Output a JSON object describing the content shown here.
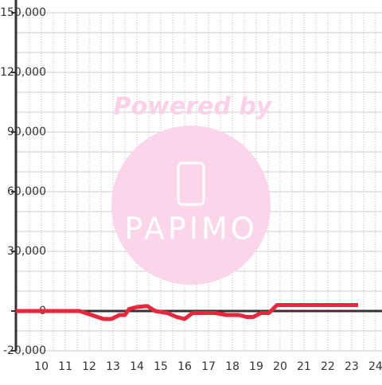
{
  "chart_data": {
    "type": "line",
    "watermark": {
      "line1": "Powered by",
      "line2": "PAPIMO"
    },
    "x": [
      8.93,
      11.6,
      12.1,
      12.6,
      12.93,
      13.27,
      13.5,
      13.67,
      14.0,
      14.43,
      14.77,
      15.27,
      15.67,
      16.0,
      16.33,
      16.6,
      17.27,
      17.77,
      18.27,
      18.6,
      18.87,
      19.2,
      19.53,
      19.87,
      20.27,
      23.27
    ],
    "series": [
      {
        "color": "#e8263c",
        "values": [
          0,
          0,
          -2000,
          -4000,
          -4000,
          -2000,
          -2000,
          1000,
          2000,
          2500,
          0,
          -1000,
          -3000,
          -4000,
          -1000,
          -1000,
          -1000,
          -2000,
          -2000,
          -3000,
          -3000,
          -1000,
          -1000,
          3000,
          3000,
          3000
        ]
      }
    ],
    "xlim": [
      8.93,
      24.27
    ],
    "xticks": [
      10,
      11,
      12,
      13,
      14,
      15,
      16,
      17,
      18,
      19,
      20,
      21,
      22,
      23,
      24
    ],
    "xminorticks": [
      9.5,
      10.5,
      11.5,
      12.5,
      13.5,
      14.5,
      15.5,
      16.5,
      17.5,
      18.5,
      19.5,
      20.5,
      21.5,
      22.5,
      23.5
    ],
    "ylim": [
      -20000,
      150000
    ],
    "yticks": [
      {
        "value": -20000,
        "label": "-20,000"
      },
      0,
      {
        "value": 30000,
        "label": "30,000"
      },
      {
        "value": 60000,
        "label": "60,000"
      },
      {
        "value": 90000,
        "label": "90,000"
      },
      {
        "value": 120000,
        "label": "120,000"
      },
      {
        "value": 150000,
        "label": "150,000"
      }
    ],
    "yminorticks": [
      -10000,
      10000,
      20000,
      40000,
      50000,
      70000,
      80000,
      100000,
      110000,
      130000,
      140000
    ],
    "grid": true
  }
}
